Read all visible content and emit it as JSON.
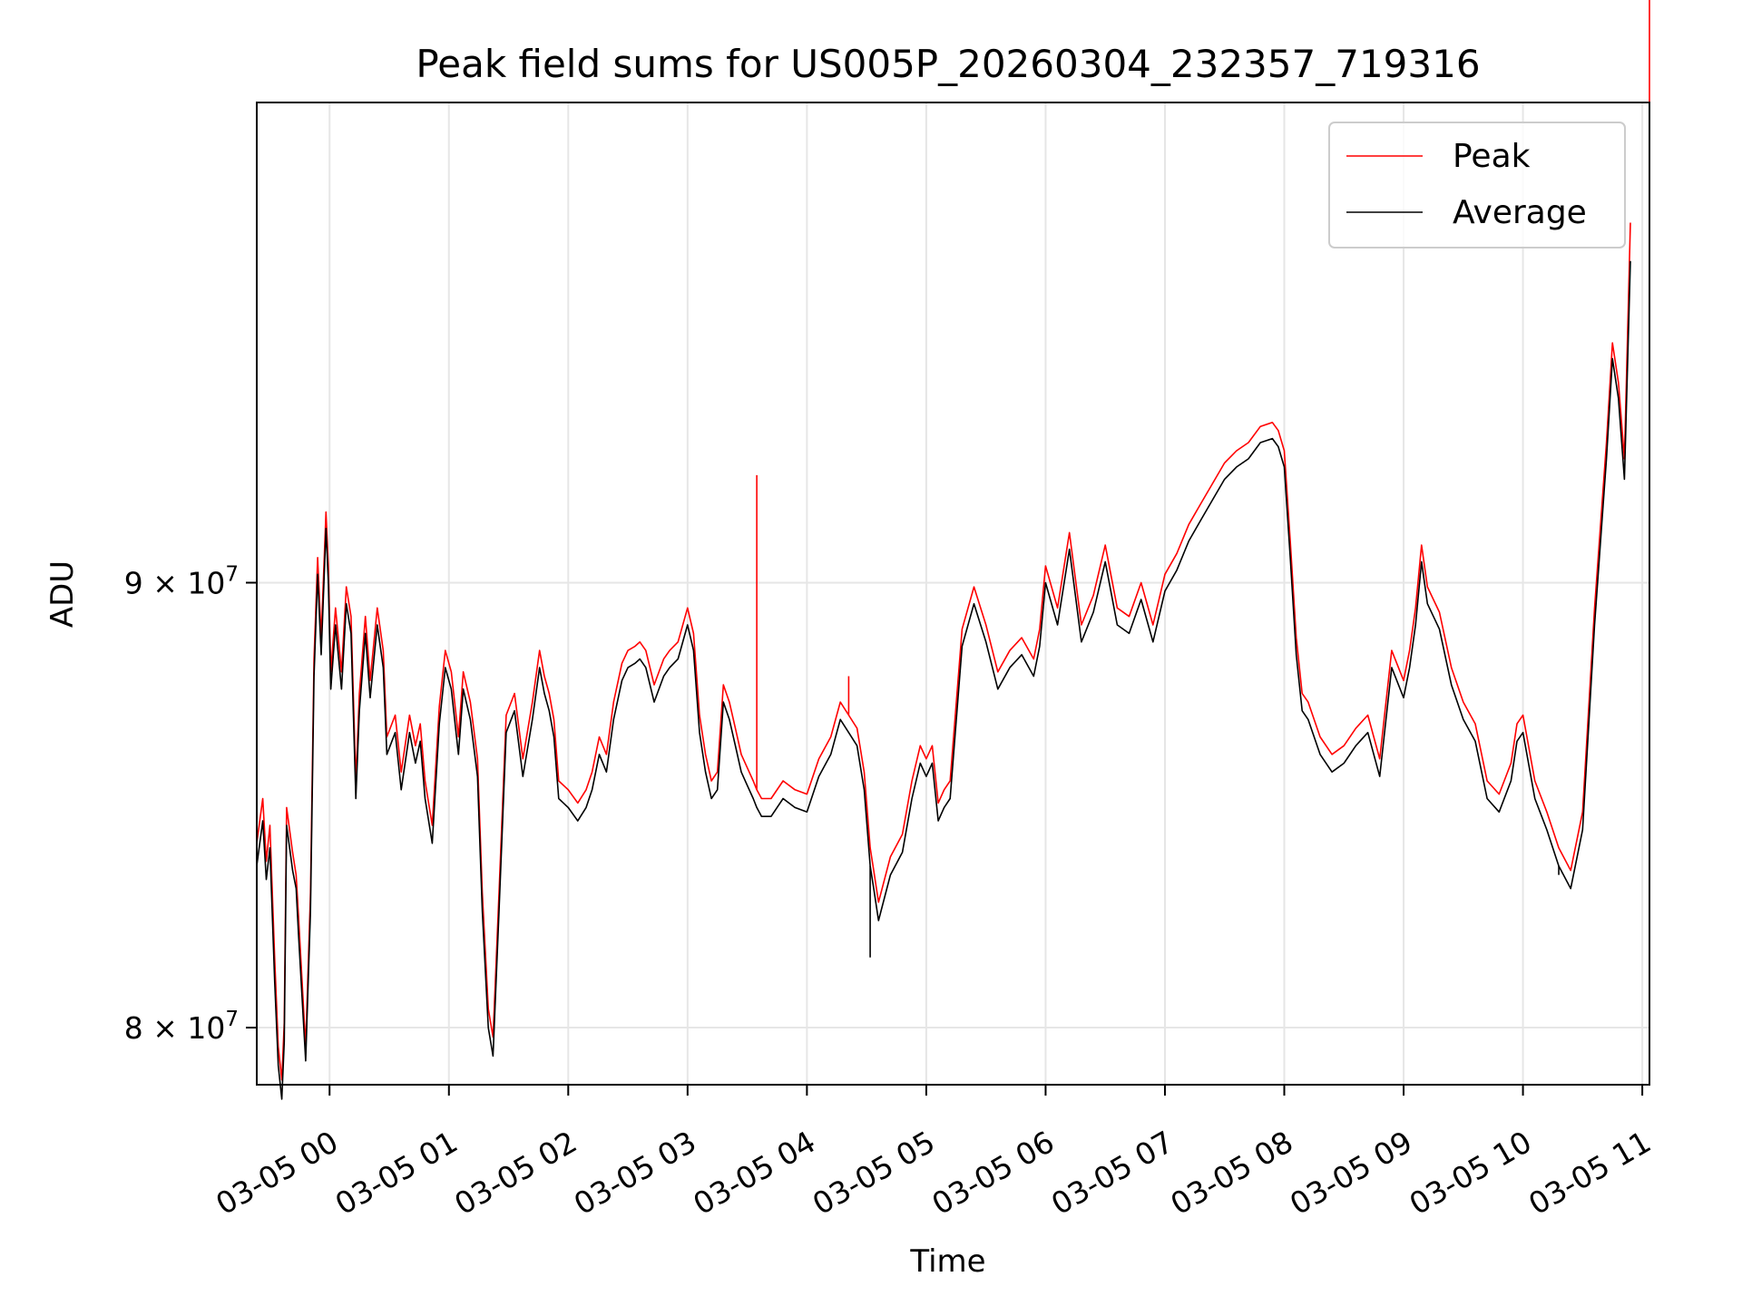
{
  "chart_data": {
    "type": "line",
    "title": "Peak field sums for US005P_20260304_232357_719316",
    "xlabel": "Time",
    "ylabel": "ADU",
    "x_unit": "hours after 03-05 00:00",
    "xlim": [
      -0.61,
      11.06
    ],
    "ylim": [
      78800000.0,
      102200000.0
    ],
    "yscale": "log",
    "grid": true,
    "legend_position": "top-right",
    "x_ticks": [
      {
        "value": 0,
        "label": "03-05 00"
      },
      {
        "value": 1,
        "label": "03-05 01"
      },
      {
        "value": 2,
        "label": "03-05 02"
      },
      {
        "value": 3,
        "label": "03-05 03"
      },
      {
        "value": 4,
        "label": "03-05 04"
      },
      {
        "value": 5,
        "label": "03-05 05"
      },
      {
        "value": 6,
        "label": "03-05 06"
      },
      {
        "value": 7,
        "label": "03-05 07"
      },
      {
        "value": 8,
        "label": "03-05 08"
      },
      {
        "value": 9,
        "label": "03-05 09"
      },
      {
        "value": 10,
        "label": "03-05 10"
      },
      {
        "value": 11,
        "label": "03-05 11"
      }
    ],
    "y_ticks": [
      {
        "value": 80000000,
        "mantissa": "8",
        "exponent": "7"
      },
      {
        "value": 90000000,
        "mantissa": "9",
        "exponent": "7"
      }
    ],
    "series": [
      {
        "name": "Peak",
        "color": "#ff0000"
      },
      {
        "name": "Average",
        "color": "#000000"
      }
    ],
    "x": [
      -0.61,
      -0.56,
      -0.53,
      -0.5,
      -0.46,
      -0.43,
      -0.4,
      -0.38,
      -0.36,
      -0.31,
      -0.28,
      -0.26,
      -0.2,
      -0.16,
      -0.13,
      -0.1,
      -0.07,
      -0.03,
      -0.01,
      0.01,
      0.05,
      0.1,
      0.14,
      0.18,
      0.22,
      0.25,
      0.3,
      0.34,
      0.4,
      0.45,
      0.48,
      0.55,
      0.6,
      0.67,
      0.72,
      0.76,
      0.8,
      0.86,
      0.92,
      0.97,
      1.02,
      1.08,
      1.12,
      1.18,
      1.24,
      1.28,
      1.33,
      1.37,
      1.42,
      1.48,
      1.55,
      1.62,
      1.7,
      1.76,
      1.8,
      1.84,
      1.88,
      1.92,
      2.0,
      2.08,
      2.15,
      2.2,
      2.26,
      2.32,
      2.38,
      2.45,
      2.5,
      2.56,
      2.6,
      2.65,
      2.72,
      2.8,
      2.85,
      2.92,
      3.0,
      3.05,
      3.1,
      3.15,
      3.2,
      3.25,
      3.3,
      3.35,
      3.4,
      3.45,
      3.5,
      3.55,
      3.58,
      3.62,
      3.7,
      3.8,
      3.9,
      4.0,
      4.1,
      4.2,
      4.28,
      4.35,
      4.42,
      4.48,
      4.53,
      4.56,
      4.6,
      4.7,
      4.8,
      4.88,
      4.95,
      5.0,
      5.05,
      5.1,
      5.15,
      5.2,
      5.3,
      5.4,
      5.5,
      5.6,
      5.7,
      5.8,
      5.9,
      5.95,
      6.0,
      6.1,
      6.2,
      6.3,
      6.4,
      6.5,
      6.6,
      6.7,
      6.8,
      6.9,
      7.0,
      7.1,
      7.2,
      7.3,
      7.4,
      7.5,
      7.6,
      7.7,
      7.8,
      7.9,
      7.95,
      8.0,
      8.05,
      8.1,
      8.15,
      8.2,
      8.3,
      8.4,
      8.5,
      8.6,
      8.7,
      8.8,
      8.9,
      9.0,
      9.05,
      9.1,
      9.15,
      9.2,
      9.3,
      9.4,
      9.5,
      9.6,
      9.7,
      9.8,
      9.9,
      9.95,
      10.0,
      10.1,
      10.2,
      10.3,
      10.4,
      10.5,
      10.6,
      10.7,
      10.75,
      10.8,
      10.85,
      10.9,
      10.95,
      11.0,
      11.02,
      11.06
    ],
    "average": [
      83.5,
      84.5,
      83.2,
      83.9,
      81.0,
      79.2,
      78.5,
      79.7,
      84.4,
      83.4,
      83.0,
      82.0,
      79.3,
      82.5,
      87.8,
      90.2,
      88.3,
      91.3,
      90.0,
      87.5,
      89.0,
      87.5,
      89.5,
      88.8,
      85.0,
      87.0,
      88.8,
      87.3,
      89.0,
      88.0,
      86.0,
      86.5,
      85.2,
      86.5,
      85.8,
      86.3,
      85.0,
      84.0,
      86.7,
      88.0,
      87.5,
      86.0,
      87.5,
      86.8,
      85.5,
      82.5,
      80.0,
      79.4,
      82.5,
      86.5,
      87.0,
      85.5,
      86.8,
      88.0,
      87.4,
      87.0,
      86.4,
      85.0,
      84.8,
      84.5,
      84.8,
      85.2,
      86.0,
      85.6,
      86.8,
      87.7,
      88.0,
      88.1,
      88.2,
      88.0,
      87.2,
      87.8,
      88.0,
      88.2,
      89.0,
      88.4,
      86.5,
      85.6,
      85.0,
      85.2,
      87.2,
      86.8,
      86.2,
      85.6,
      85.3,
      85.0,
      84.8,
      84.6,
      84.6,
      85.0,
      84.8,
      84.7,
      85.5,
      86.0,
      86.8,
      86.5,
      86.2,
      85.2,
      83.5,
      83.0,
      82.3,
      83.3,
      83.8,
      85.0,
      85.8,
      85.5,
      85.8,
      84.5,
      84.8,
      85.0,
      88.5,
      89.5,
      88.6,
      87.5,
      88.0,
      88.3,
      87.8,
      88.5,
      90.0,
      89.0,
      90.8,
      88.6,
      89.3,
      90.5,
      89.0,
      88.8,
      89.6,
      88.6,
      89.8,
      90.3,
      91.0,
      91.5,
      92.0,
      92.5,
      92.8,
      93.0,
      93.4,
      93.5,
      93.3,
      92.8,
      90.6,
      88.3,
      87.0,
      86.8,
      86.0,
      85.6,
      85.8,
      86.2,
      86.5,
      85.5,
      88.0,
      87.3,
      88.0,
      89.0,
      90.5,
      89.5,
      88.9,
      87.6,
      86.8,
      86.3,
      85.0,
      84.7,
      85.4,
      86.3,
      86.5,
      85.0,
      84.3,
      83.5,
      83.0,
      84.3,
      89.0,
      93.0,
      95.5,
      94.5,
      92.5,
      98.0
    ],
    "peak": [
      84.0,
      85.0,
      83.6,
      84.4,
      81.5,
      79.6,
      78.9,
      80.1,
      84.8,
      83.8,
      83.3,
      82.4,
      79.6,
      82.9,
      88.2,
      90.6,
      88.7,
      91.7,
      90.4,
      87.9,
      89.4,
      87.9,
      89.9,
      89.2,
      85.4,
      87.4,
      89.2,
      87.7,
      89.4,
      88.4,
      86.4,
      86.9,
      85.6,
      86.9,
      86.2,
      86.7,
      85.4,
      84.4,
      87.1,
      88.4,
      87.9,
      86.4,
      87.9,
      87.2,
      85.9,
      82.9,
      80.4,
      79.8,
      82.9,
      86.9,
      87.4,
      85.9,
      87.2,
      88.4,
      87.8,
      87.4,
      86.8,
      85.4,
      85.2,
      84.9,
      85.2,
      85.6,
      86.4,
      86.0,
      87.2,
      88.1,
      88.4,
      88.5,
      88.6,
      88.4,
      87.6,
      88.2,
      88.4,
      88.6,
      89.4,
      88.8,
      86.9,
      86.0,
      85.4,
      85.6,
      87.6,
      87.2,
      86.6,
      86.0,
      85.7,
      85.4,
      85.2,
      85.0,
      85.0,
      85.4,
      85.2,
      85.1,
      85.9,
      86.4,
      87.2,
      86.9,
      86.6,
      85.6,
      83.9,
      83.4,
      82.7,
      83.7,
      84.2,
      85.4,
      86.2,
      85.9,
      86.2,
      84.9,
      85.2,
      85.4,
      88.9,
      89.9,
      89.0,
      87.9,
      88.4,
      88.7,
      88.2,
      88.9,
      90.4,
      89.4,
      91.2,
      89.0,
      89.7,
      90.9,
      89.4,
      89.2,
      90.0,
      89.0,
      90.2,
      90.7,
      91.4,
      91.9,
      92.4,
      92.9,
      93.2,
      93.4,
      93.8,
      93.9,
      93.7,
      93.2,
      91.0,
      88.7,
      87.4,
      87.2,
      86.4,
      86.0,
      86.2,
      86.6,
      86.9,
      85.9,
      88.4,
      87.7,
      88.4,
      89.4,
      90.9,
      89.9,
      89.3,
      88.0,
      87.2,
      86.7,
      85.4,
      85.1,
      85.8,
      86.7,
      86.9,
      85.4,
      84.7,
      83.9,
      83.4,
      84.7,
      89.4,
      93.4,
      95.9,
      94.9,
      93.0,
      99.0
    ],
    "value_scale": 1000000,
    "spikes": [
      {
        "series": "Peak",
        "x": 3.58,
        "value": 92.6
      },
      {
        "series": "Peak",
        "x": 4.35,
        "value": 87.8
      },
      {
        "series": "Peak",
        "x": 11.06,
        "value": 102.2
      },
      {
        "series": "Average",
        "x": 4.53,
        "value": 81.5
      },
      {
        "series": "Average",
        "x": 10.3,
        "value": 83.3
      }
    ]
  }
}
